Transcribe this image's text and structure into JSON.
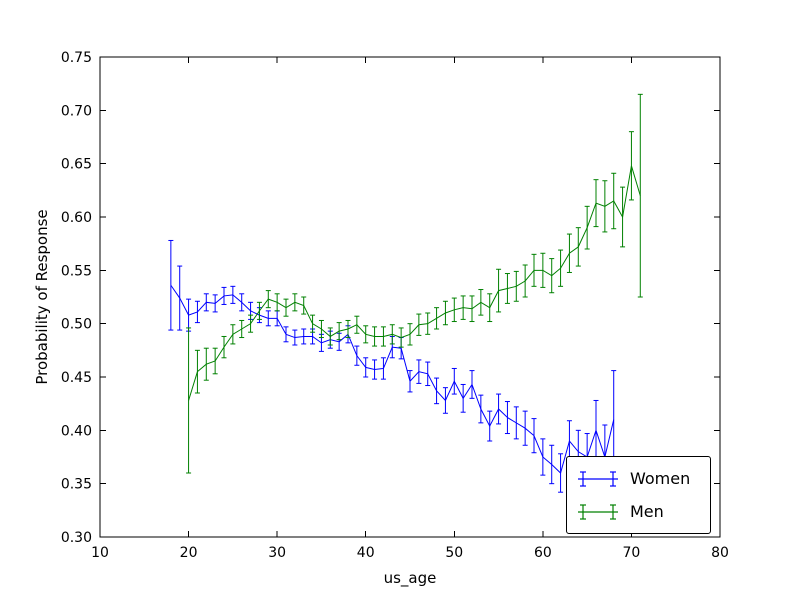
{
  "figure": {
    "background": "#ffffff"
  },
  "chart_data": {
    "type": "line",
    "title": "",
    "xlabel": "us_age",
    "ylabel": "Probability of Response",
    "xlim": [
      10,
      80
    ],
    "ylim": [
      0.3,
      0.75
    ],
    "xticks": [
      10,
      20,
      30,
      40,
      50,
      60,
      70,
      80
    ],
    "yticks": [
      0.3,
      0.35,
      0.4,
      0.45,
      0.5,
      0.55,
      0.6,
      0.65,
      0.7,
      0.75
    ],
    "grid": false,
    "error_bars": true,
    "legend_position": "lower right",
    "series": [
      {
        "name": "Women",
        "color": "#0000ff",
        "x": [
          18,
          19,
          20,
          21,
          22,
          23,
          24,
          25,
          26,
          27,
          28,
          29,
          30,
          31,
          32,
          33,
          34,
          35,
          36,
          37,
          38,
          39,
          40,
          41,
          42,
          43,
          44,
          45,
          46,
          47,
          48,
          49,
          50,
          51,
          52,
          53,
          54,
          55,
          56,
          57,
          58,
          59,
          60,
          61,
          62,
          63,
          64,
          65,
          66,
          67,
          68
        ],
        "y": [
          0.536,
          0.524,
          0.508,
          0.511,
          0.52,
          0.519,
          0.526,
          0.527,
          0.52,
          0.512,
          0.508,
          0.505,
          0.505,
          0.49,
          0.487,
          0.488,
          0.488,
          0.482,
          0.485,
          0.483,
          0.49,
          0.47,
          0.459,
          0.457,
          0.458,
          0.478,
          0.477,
          0.446,
          0.455,
          0.453,
          0.437,
          0.428,
          0.446,
          0.43,
          0.443,
          0.42,
          0.404,
          0.42,
          0.412,
          0.407,
          0.402,
          0.395,
          0.375,
          0.368,
          0.36,
          0.39,
          0.38,
          0.375,
          0.4,
          0.375,
          0.41
        ],
        "yerr": [
          0.042,
          0.03,
          0.015,
          0.01,
          0.008,
          0.008,
          0.008,
          0.008,
          0.008,
          0.008,
          0.007,
          0.007,
          0.007,
          0.007,
          0.007,
          0.007,
          0.007,
          0.008,
          0.008,
          0.008,
          0.008,
          0.009,
          0.009,
          0.009,
          0.01,
          0.01,
          0.01,
          0.01,
          0.011,
          0.011,
          0.012,
          0.012,
          0.012,
          0.013,
          0.013,
          0.013,
          0.014,
          0.014,
          0.015,
          0.015,
          0.016,
          0.016,
          0.017,
          0.018,
          0.018,
          0.019,
          0.02,
          0.022,
          0.028,
          0.03,
          0.046
        ]
      },
      {
        "name": "Men",
        "color": "#008000",
        "x": [
          20,
          21,
          22,
          23,
          24,
          25,
          26,
          27,
          28,
          29,
          30,
          31,
          32,
          33,
          34,
          35,
          36,
          37,
          38,
          39,
          40,
          41,
          42,
          43,
          44,
          45,
          46,
          47,
          48,
          49,
          50,
          51,
          52,
          53,
          54,
          55,
          56,
          57,
          58,
          59,
          60,
          61,
          62,
          63,
          64,
          65,
          66,
          67,
          68,
          69,
          70,
          71
        ],
        "y": [
          0.428,
          0.455,
          0.462,
          0.465,
          0.478,
          0.49,
          0.495,
          0.5,
          0.512,
          0.523,
          0.52,
          0.515,
          0.52,
          0.517,
          0.5,
          0.495,
          0.488,
          0.493,
          0.495,
          0.499,
          0.49,
          0.488,
          0.488,
          0.49,
          0.487,
          0.49,
          0.499,
          0.5,
          0.505,
          0.51,
          0.513,
          0.515,
          0.514,
          0.52,
          0.515,
          0.531,
          0.533,
          0.535,
          0.54,
          0.55,
          0.55,
          0.545,
          0.552,
          0.566,
          0.572,
          0.59,
          0.613,
          0.61,
          0.615,
          0.6,
          0.648,
          0.62
        ],
        "yerr": [
          0.068,
          0.02,
          0.015,
          0.012,
          0.01,
          0.009,
          0.008,
          0.008,
          0.008,
          0.008,
          0.008,
          0.008,
          0.008,
          0.008,
          0.008,
          0.008,
          0.008,
          0.008,
          0.008,
          0.008,
          0.008,
          0.009,
          0.009,
          0.009,
          0.009,
          0.01,
          0.01,
          0.01,
          0.01,
          0.011,
          0.011,
          0.011,
          0.012,
          0.012,
          0.013,
          0.02,
          0.014,
          0.014,
          0.015,
          0.015,
          0.016,
          0.016,
          0.017,
          0.018,
          0.018,
          0.02,
          0.022,
          0.024,
          0.026,
          0.028,
          0.032,
          0.095
        ]
      }
    ]
  }
}
